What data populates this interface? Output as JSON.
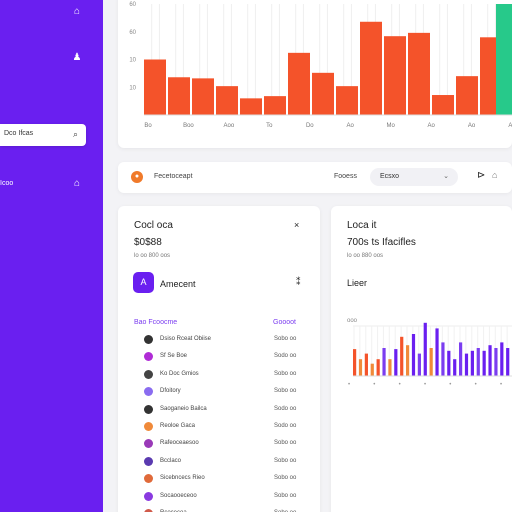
{
  "sidebar": {
    "search_label": "Dco Ifcas",
    "section_label": "Icoo"
  },
  "top_chart": {
    "chart_data": {
      "type": "bar",
      "y_tick_labels": [
        "60",
        "60",
        "10",
        "10"
      ],
      "x_tick_labels": [
        "Bo",
        "Boo",
        "Aoo",
        "To",
        "Do",
        "Ao",
        "Mo",
        "Ao",
        "Ao",
        "Ao"
      ],
      "values": [
        50,
        34,
        33,
        26,
        15,
        17,
        56,
        38,
        26,
        84,
        71,
        74,
        18,
        35,
        70
      ],
      "ylim": [
        0,
        100
      ],
      "bar_color": "#f4532a",
      "accent_bar_color": "#27c98a"
    }
  },
  "filter": {
    "dot_icon_char": "●",
    "label": "Fecetoceapt",
    "mid_label": "Fooess",
    "select_value": "Ecsxo",
    "chevron_char": "⌄",
    "icon_a_char": "⊳",
    "icon_b_char": "⌂"
  },
  "accounts": {
    "title": "Cocl oca",
    "value": "$0$88",
    "sub": "lo oo  800 oos",
    "close_char": "×",
    "avatar_char": "A",
    "account_name": "Amecent",
    "move_char": "⁑",
    "list_header_left": "Bao Fcoocme",
    "list_header_right": "Goooot",
    "transactions": [
      {
        "name": "Dsiso Rceat Obiise",
        "amount": "Sobo oo",
        "color": "#333333"
      },
      {
        "name": "Sf Se Boe",
        "amount": "Sodo oo",
        "color": "#b02cd6"
      },
      {
        "name": "Ko Doc Gmios",
        "amount": "Sobo oo",
        "color": "#444444"
      },
      {
        "name": "Dfoitory",
        "amount": "Sobo oo",
        "color": "#8a6cf0"
      },
      {
        "name": "Saoganeio Bailca",
        "amount": "Sodo oo",
        "color": "#333333"
      },
      {
        "name": "Reoloe Gaca",
        "amount": "Sodo oo",
        "color": "#f08a3a"
      },
      {
        "name": "Rafeoceaesoo",
        "amount": "Sobo oo",
        "color": "#9a3ab8"
      },
      {
        "name": "Bcclaco",
        "amount": "Sobo oo",
        "color": "#5a3ab0"
      },
      {
        "name": "Sicebncecs Rieo",
        "amount": "Sobo oo",
        "color": "#e06a3a"
      },
      {
        "name": "Socaooeceoo",
        "amount": "Sobo oo",
        "color": "#8a3ae0"
      },
      {
        "name": "Rcocecoa",
        "amount": "Sobo oo",
        "color": "#d05a4a"
      }
    ]
  },
  "load": {
    "title": "Loca it",
    "value": "700s ts Ifacifles",
    "sub": "lo oo  880 oos",
    "chart_title": "Lieer",
    "chart_data": {
      "type": "bar",
      "y_tick_label": "ooo",
      "x_tick_labels": [
        "•",
        "•",
        "•",
        "•",
        "•",
        "•",
        "•"
      ],
      "values": [
        48,
        30,
        40,
        22,
        30,
        50,
        30,
        48,
        70,
        55,
        75,
        40,
        95,
        50,
        85,
        60,
        45,
        30,
        60,
        40,
        45,
        50,
        45,
        55,
        50,
        60,
        50
      ],
      "colors": [
        "#f4532a",
        "#f08a3a",
        "#f4532a",
        "#f08a3a",
        "#f4532a",
        "#7b3df0",
        "#f08a3a",
        "#6a1ff0",
        "#f4532a",
        "#f08a3a",
        "#6a1ff0",
        "#7b3df0",
        "#6a1ff0",
        "#f08a3a",
        "#6a1ff0",
        "#7b3df0",
        "#6a1ff0",
        "#6a1ff0",
        "#7b3df0",
        "#6a1ff0",
        "#6a1ff0",
        "#7b3df0",
        "#6a1ff0",
        "#6a1ff0",
        "#7b3df0",
        "#6a1ff0",
        "#6a1ff0"
      ],
      "ylim": [
        0,
        100
      ]
    }
  }
}
